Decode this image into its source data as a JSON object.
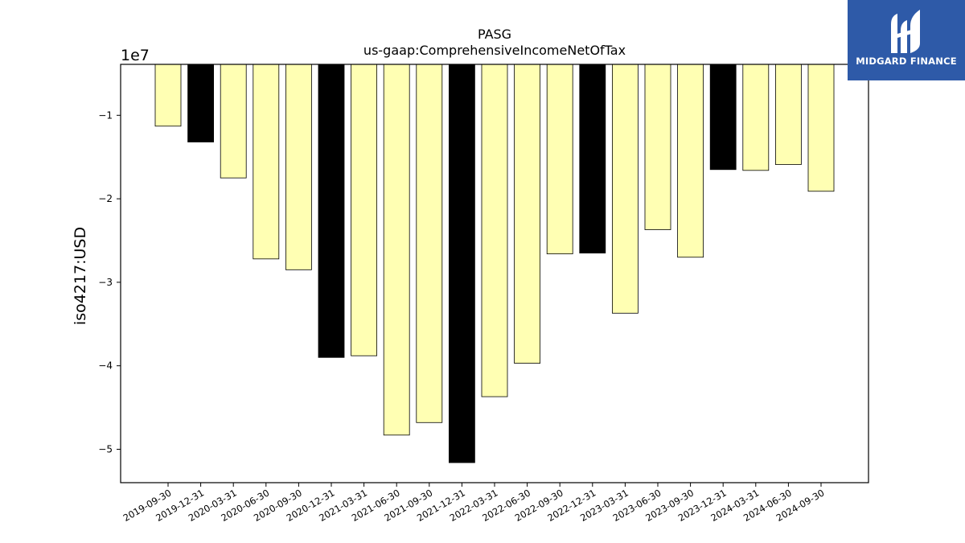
{
  "brand": {
    "name": "MIDGARD FINANCE",
    "accent_color": "#2e5aa8"
  },
  "chart_data": {
    "type": "bar",
    "title": "PASG",
    "subtitle": "us-gaap:ComprehensiveIncomeNetOfTax",
    "ylabel": "iso4217:USD",
    "xlabel": "",
    "scale_label": "1e7",
    "ylim": [
      -54000000,
      -3900000
    ],
    "yticks": [
      -10000000,
      -20000000,
      -30000000,
      -40000000,
      -50000000
    ],
    "ytick_labels": [
      "−1",
      "−2",
      "−3",
      "−4",
      "−5"
    ],
    "categories": [
      "2019-09-30",
      "2019-12-31",
      "2020-03-31",
      "2020-06-30",
      "2020-09-30",
      "2020-12-31",
      "2021-03-31",
      "2021-06-30",
      "2021-09-30",
      "2021-12-31",
      "2022-03-31",
      "2022-06-30",
      "2022-09-30",
      "2022-12-31",
      "2023-03-31",
      "2023-06-30",
      "2023-09-30",
      "2023-12-31",
      "2024-03-31",
      "2024-06-30",
      "2024-09-30"
    ],
    "values": [
      -11300000,
      -13200000,
      -17500000,
      -27200000,
      -28500000,
      -39000000,
      -38800000,
      -48300000,
      -46800000,
      -51600000,
      -43700000,
      -39700000,
      -26600000,
      -26500000,
      -33700000,
      -23700000,
      -27000000,
      -16500000,
      -16600000,
      -15900000,
      -19100000
    ],
    "bar_colors": [
      "#ffffb3",
      "#000000",
      "#ffffb3",
      "#ffffb3",
      "#ffffb3",
      "#000000",
      "#ffffb3",
      "#ffffb3",
      "#ffffb3",
      "#000000",
      "#ffffb3",
      "#ffffb3",
      "#ffffb3",
      "#000000",
      "#ffffb3",
      "#ffffb3",
      "#ffffb3",
      "#000000",
      "#ffffb3",
      "#ffffb3",
      "#ffffb3"
    ],
    "grid": false,
    "legend": "none"
  }
}
